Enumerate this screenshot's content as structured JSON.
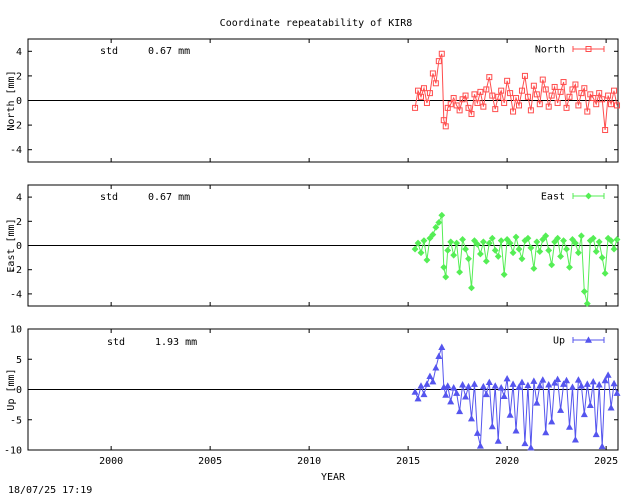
{
  "title": "Coordinate repeatability of KIR8",
  "timestamp": "18/07/25 17:19",
  "chart_data": [
    {
      "type": "line",
      "title": "Coordinate repeatability of KIR8",
      "xlabel": "YEAR",
      "ylabel": "North [mm]",
      "xlim": [
        1995.8,
        2025.6
      ],
      "ylim": [
        -5,
        5
      ],
      "yticks": [
        -4,
        -2,
        0,
        2,
        4
      ],
      "xticks": [
        2000,
        2005,
        2010,
        2015,
        2020,
        2025
      ],
      "grid": false,
      "legend": "top-right",
      "std_label": "std",
      "std_value": "0.67 mm",
      "series": [
        {
          "name": "North",
          "color": "#ff4d4d",
          "marker": "square",
          "x": [
            2015.35,
            2015.5,
            2015.65,
            2015.8,
            2015.95,
            2016.1,
            2016.25,
            2016.4,
            2016.55,
            2016.7,
            2016.8,
            2016.9,
            2017.0,
            2017.15,
            2017.3,
            2017.45,
            2017.6,
            2017.75,
            2017.9,
            2018.05,
            2018.2,
            2018.35,
            2018.5,
            2018.65,
            2018.8,
            2018.95,
            2019.1,
            2019.25,
            2019.4,
            2019.55,
            2019.7,
            2019.85,
            2020.0,
            2020.15,
            2020.3,
            2020.45,
            2020.6,
            2020.75,
            2020.9,
            2021.05,
            2021.2,
            2021.35,
            2021.5,
            2021.65,
            2021.8,
            2021.95,
            2022.1,
            2022.25,
            2022.4,
            2022.55,
            2022.7,
            2022.85,
            2023.0,
            2023.15,
            2023.3,
            2023.45,
            2023.6,
            2023.75,
            2023.9,
            2024.05,
            2024.2,
            2024.35,
            2024.5,
            2024.65,
            2024.8,
            2024.95,
            2025.1,
            2025.25,
            2025.4,
            2025.55
          ],
          "y": [
            -0.6,
            0.8,
            0.3,
            1.0,
            -0.2,
            0.6,
            2.2,
            1.4,
            3.2,
            3.8,
            -1.6,
            -2.1,
            -0.6,
            -0.3,
            0.2,
            -0.4,
            -0.8,
            0.1,
            0.4,
            -0.6,
            -1.1,
            0.5,
            -0.2,
            0.7,
            -0.5,
            0.9,
            1.9,
            0.4,
            -0.7,
            0.3,
            0.8,
            -0.2,
            1.6,
            0.6,
            -0.9,
            0.2,
            -0.4,
            0.8,
            2.0,
            0.3,
            -0.8,
            1.2,
            0.5,
            -0.3,
            1.7,
            0.9,
            -0.5,
            0.4,
            1.1,
            -0.2,
            0.7,
            1.5,
            -0.6,
            0.3,
            0.9,
            1.3,
            -0.4,
            0.6,
            1.0,
            -0.9,
            0.5,
            0.2,
            -0.3,
            0.6,
            0.1,
            -2.4,
            0.4,
            -0.3,
            0.8,
            -0.4
          ]
        }
      ]
    },
    {
      "type": "line",
      "xlabel": "YEAR",
      "ylabel": "East [mm]",
      "xlim": [
        1995.8,
        2025.6
      ],
      "ylim": [
        -5,
        5
      ],
      "yticks": [
        -4,
        -2,
        0,
        2,
        4
      ],
      "xticks": [
        2000,
        2005,
        2010,
        2015,
        2020,
        2025
      ],
      "grid": false,
      "legend": "top-right",
      "std_label": "std",
      "std_value": "0.67 mm",
      "series": [
        {
          "name": "East",
          "color": "#55ee55",
          "marker": "diamond",
          "x": [
            2015.35,
            2015.5,
            2015.65,
            2015.8,
            2015.95,
            2016.1,
            2016.25,
            2016.4,
            2016.55,
            2016.7,
            2016.8,
            2016.9,
            2017.0,
            2017.15,
            2017.3,
            2017.45,
            2017.6,
            2017.75,
            2017.9,
            2018.05,
            2018.2,
            2018.35,
            2018.5,
            2018.65,
            2018.8,
            2018.95,
            2019.1,
            2019.25,
            2019.4,
            2019.55,
            2019.7,
            2019.85,
            2020.0,
            2020.15,
            2020.3,
            2020.45,
            2020.6,
            2020.75,
            2020.9,
            2021.05,
            2021.2,
            2021.35,
            2021.5,
            2021.65,
            2021.8,
            2021.95,
            2022.1,
            2022.25,
            2022.4,
            2022.55,
            2022.7,
            2022.85,
            2023.0,
            2023.15,
            2023.3,
            2023.45,
            2023.6,
            2023.75,
            2023.9,
            2024.05,
            2024.2,
            2024.35,
            2024.5,
            2024.65,
            2024.8,
            2024.95,
            2025.1,
            2025.25,
            2025.4,
            2025.55
          ],
          "y": [
            -0.3,
            0.2,
            -0.6,
            0.4,
            -1.2,
            0.6,
            0.9,
            1.5,
            1.9,
            2.5,
            -1.8,
            -2.6,
            -0.4,
            0.3,
            -0.8,
            0.2,
            -2.2,
            0.5,
            -0.3,
            -1.1,
            -3.5,
            0.4,
            0.1,
            -0.7,
            0.3,
            -1.3,
            0.2,
            0.6,
            -0.4,
            -0.9,
            0.4,
            -2.4,
            0.5,
            0.2,
            -0.6,
            0.7,
            -0.3,
            -1.1,
            0.4,
            0.6,
            -0.2,
            -1.9,
            0.3,
            -0.5,
            0.5,
            0.8,
            -0.4,
            -1.6,
            0.3,
            0.6,
            -0.9,
            0.4,
            -0.3,
            -1.8,
            0.5,
            0.2,
            -0.6,
            0.8,
            -3.8,
            -4.8,
            0.4,
            0.6,
            -0.5,
            0.3,
            -1.0,
            -2.3,
            0.6,
            0.4,
            -0.3,
            0.5
          ]
        }
      ]
    },
    {
      "type": "line",
      "xlabel": "YEAR",
      "ylabel": "Up [mm]",
      "xlim": [
        1995.8,
        2025.6
      ],
      "ylim": [
        -10,
        10
      ],
      "yticks": [
        -10,
        -5,
        0,
        5,
        10
      ],
      "xticks": [
        2000,
        2005,
        2010,
        2015,
        2020,
        2025
      ],
      "grid": false,
      "legend": "top-right",
      "std_label": "std",
      "std_value": "1.93 mm",
      "series": [
        {
          "name": "Up",
          "color": "#5555ee",
          "marker": "triangle",
          "x": [
            2015.35,
            2015.5,
            2015.65,
            2015.8,
            2015.95,
            2016.1,
            2016.25,
            2016.4,
            2016.55,
            2016.7,
            2016.8,
            2016.9,
            2017.0,
            2017.15,
            2017.3,
            2017.45,
            2017.6,
            2017.75,
            2017.9,
            2018.05,
            2018.2,
            2018.35,
            2018.5,
            2018.65,
            2018.8,
            2018.95,
            2019.1,
            2019.25,
            2019.4,
            2019.55,
            2019.7,
            2019.85,
            2020.0,
            2020.15,
            2020.3,
            2020.45,
            2020.6,
            2020.75,
            2020.9,
            2021.05,
            2021.2,
            2021.35,
            2021.5,
            2021.65,
            2021.8,
            2021.95,
            2022.1,
            2022.25,
            2022.4,
            2022.55,
            2022.7,
            2022.85,
            2023.0,
            2023.15,
            2023.3,
            2023.45,
            2023.6,
            2023.75,
            2023.9,
            2024.05,
            2024.2,
            2024.35,
            2024.5,
            2024.65,
            2024.8,
            2024.95,
            2025.1,
            2025.25,
            2025.4,
            2025.55
          ],
          "y": [
            -0.4,
            -1.5,
            0.6,
            -0.8,
            0.9,
            2.2,
            1.3,
            3.6,
            5.5,
            7.0,
            0.4,
            -0.9,
            0.6,
            -2.0,
            0.3,
            -0.6,
            -3.6,
            0.8,
            -1.2,
            0.5,
            -4.8,
            0.9,
            -7.2,
            -9.3,
            0.5,
            -0.8,
            1.2,
            -6.1,
            0.6,
            -8.5,
            0.3,
            -1.1,
            1.8,
            -4.2,
            0.9,
            -6.8,
            0.4,
            1.2,
            -8.9,
            0.7,
            -9.6,
            1.4,
            -2.2,
            0.6,
            1.6,
            -7.1,
            0.8,
            -5.3,
            1.1,
            1.7,
            -3.4,
            0.9,
            1.5,
            -6.2,
            0.4,
            -8.3,
            1.6,
            0.6,
            -4.1,
            0.9,
            -2.6,
            1.3,
            -7.4,
            0.8,
            -9.4,
            1.5,
            2.4,
            -3.0,
            1.0,
            -0.6
          ]
        }
      ]
    }
  ]
}
